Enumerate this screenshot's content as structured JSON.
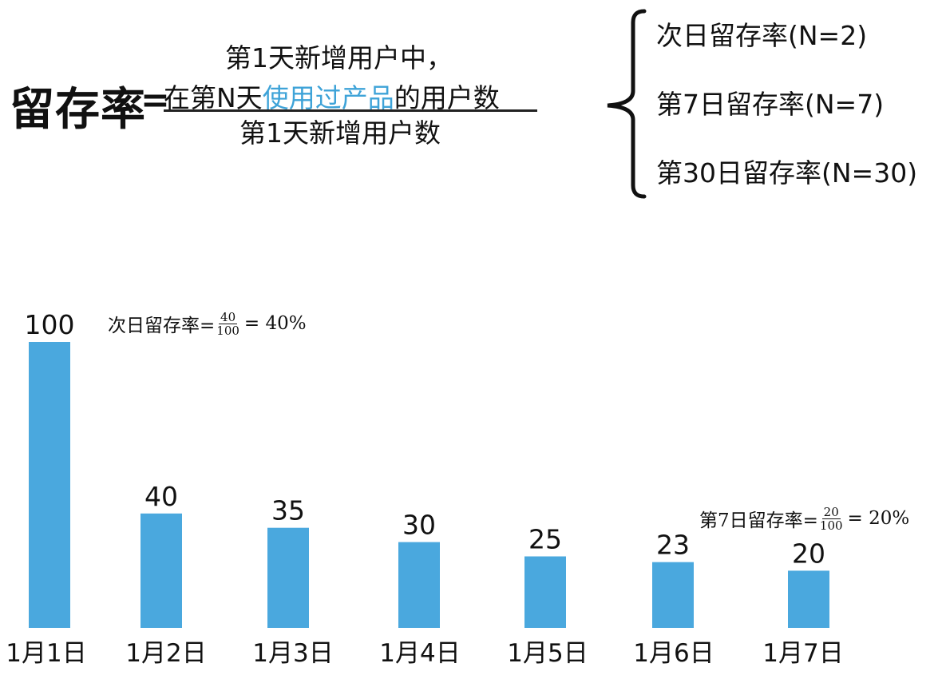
{
  "formula": {
    "label": "留存率",
    "equals": "=",
    "numerator_line1": "第1天新增用户中，",
    "numerator_prefix": "在第N天",
    "numerator_highlight": "使用过产品",
    "numerator_suffix": "的用户数",
    "denominator": "第1天新增用户数",
    "highlight_color": "#3ea3d8"
  },
  "rate_types": [
    "次日留存率(N=2)",
    "第7日留存率(N=7)",
    "第30日留存率(N=30)"
  ],
  "annotations": [
    {
      "label": "次日留存率=",
      "num": "40",
      "den": "100",
      "result": "= 40%"
    },
    {
      "label": "第7日留存率=",
      "num": "20",
      "den": "100",
      "result": "= 20%"
    }
  ],
  "chart_data": {
    "type": "bar",
    "categories": [
      "1月1日",
      "1月2日",
      "1月3日",
      "1月4日",
      "1月5日",
      "1月6日",
      "1月7日"
    ],
    "values": [
      100,
      40,
      35,
      30,
      25,
      23,
      20
    ],
    "data_labels": [
      "100",
      "40",
      "35",
      "30",
      "25",
      "23",
      "20"
    ],
    "bar_color": "#4aa8de",
    "title": "",
    "xlabel": "",
    "ylabel": "",
    "grid": false
  }
}
